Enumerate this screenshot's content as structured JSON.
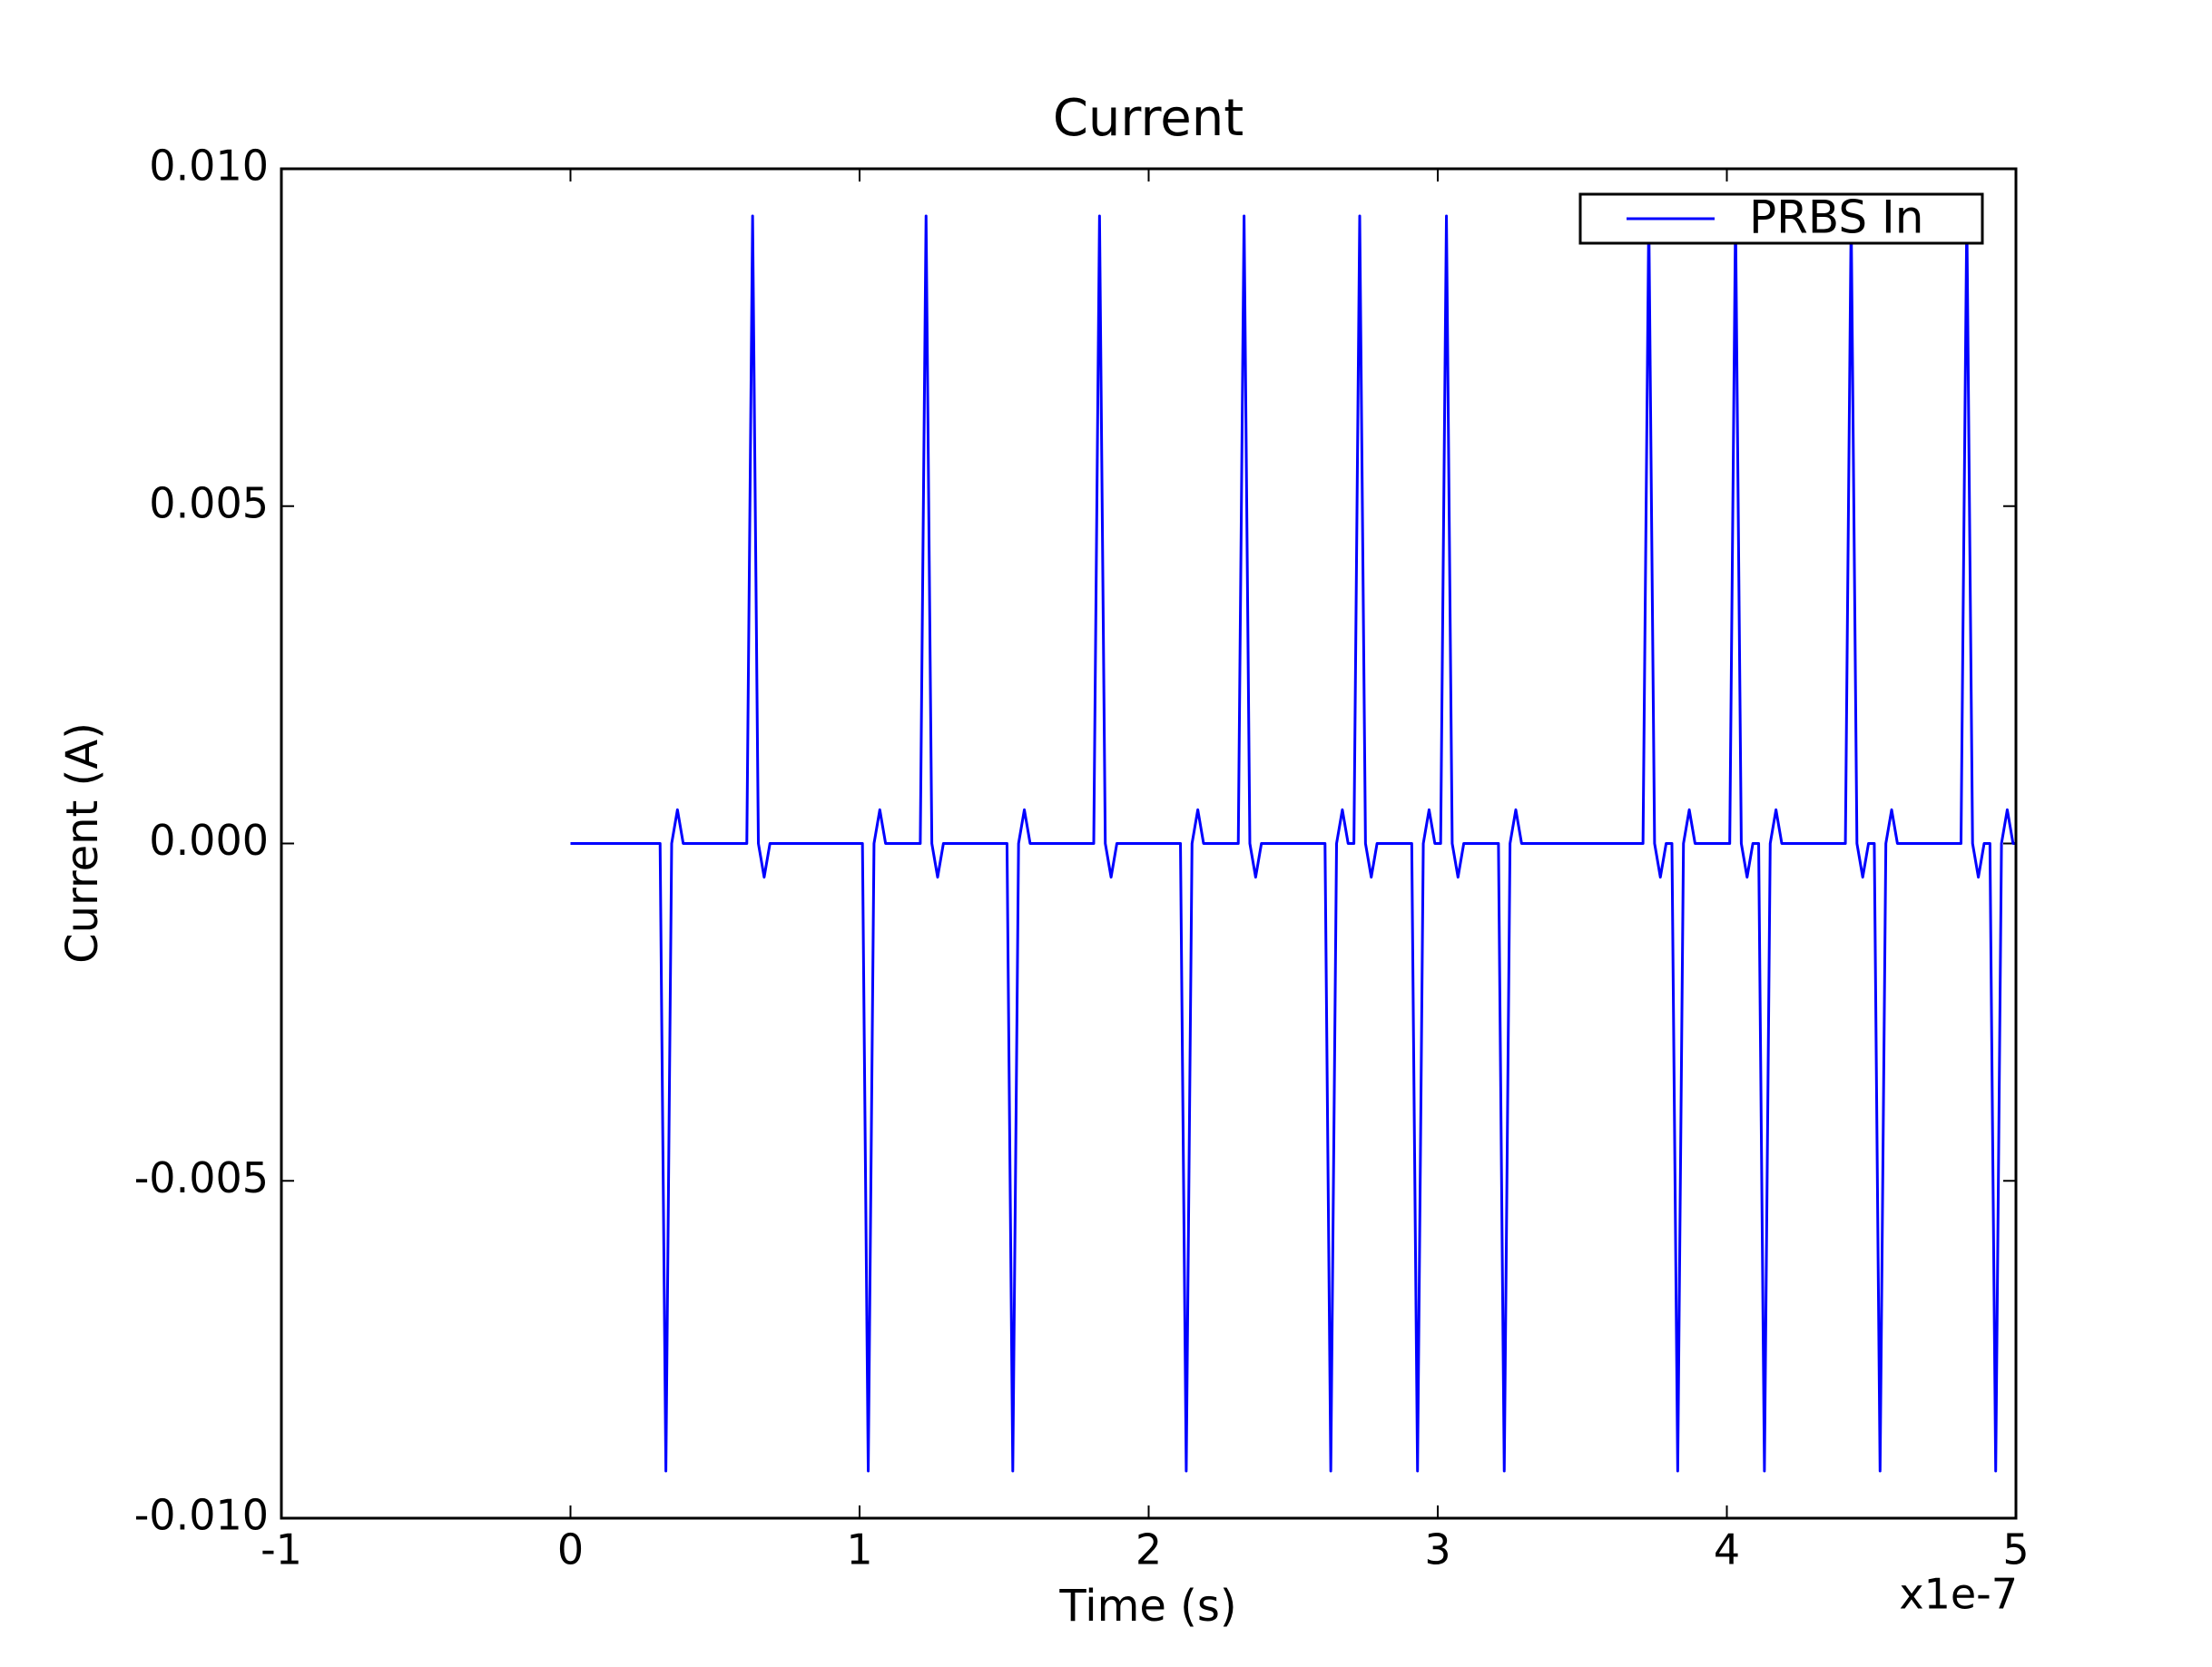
{
  "chart_data": {
    "type": "line",
    "title": "Current",
    "xlabel": "Time (s)",
    "ylabel": "Current (A)",
    "x_offset_label": "x1e-7",
    "x": [
      0,
      0.31,
      0.33,
      0.35,
      0.37,
      0.39,
      0.61,
      0.63,
      0.65,
      0.67,
      0.69,
      1.01,
      1.03,
      1.05,
      1.07,
      1.09,
      1.21,
      1.23,
      1.25,
      1.27,
      1.29,
      1.51,
      1.53,
      1.55,
      1.57,
      1.59,
      1.81,
      1.83,
      1.85,
      1.87,
      1.89,
      2.11,
      2.13,
      2.15,
      2.17,
      2.19,
      2.31,
      2.33,
      2.35,
      2.37,
      2.39,
      2.61,
      2.63,
      2.65,
      2.67,
      2.69,
      2.71,
      2.73,
      2.75,
      2.77,
      2.79,
      2.91,
      2.93,
      2.95,
      2.97,
      2.99,
      3.01,
      3.03,
      3.05,
      3.07,
      3.09,
      3.21,
      3.23,
      3.25,
      3.27,
      3.29,
      3.71,
      3.73,
      3.75,
      3.77,
      3.79,
      3.81,
      3.83,
      3.85,
      3.87,
      3.89,
      4.01,
      4.03,
      4.05,
      4.07,
      4.09,
      4.11,
      4.13,
      4.15,
      4.17,
      4.19,
      4.41,
      4.43,
      4.45,
      4.47,
      4.49,
      4.51,
      4.53,
      4.55,
      4.57,
      4.59,
      4.81,
      4.83,
      4.85,
      4.87,
      4.89,
      4.91,
      4.93,
      4.95,
      4.97,
      4.99,
      5
    ],
    "series": [
      {
        "name": "PRBS In",
        "color": "#0000ff",
        "values": [
          0,
          0,
          -0.0093,
          0,
          0.0005,
          0,
          0,
          0.0093,
          0,
          -0.0005,
          0,
          0,
          -0.0093,
          0,
          0.0005,
          0,
          0,
          0.0093,
          0,
          -0.0005,
          0,
          0,
          -0.0093,
          0,
          0.0005,
          0,
          0,
          0.0093,
          0,
          -0.0005,
          0,
          0,
          -0.0093,
          0,
          0.0005,
          0,
          0,
          0.0093,
          0,
          -0.0005,
          0,
          0,
          -0.0093,
          0,
          0.0005,
          0,
          0,
          0.0093,
          0,
          -0.0005,
          0,
          0,
          -0.0093,
          0,
          0.0005,
          0,
          0,
          0.0093,
          0,
          -0.0005,
          0,
          0,
          -0.0093,
          0,
          0.0005,
          0,
          0,
          0.0093,
          0,
          -0.0005,
          0,
          0,
          -0.0093,
          0,
          0.0005,
          0,
          0,
          0.0093,
          0,
          -0.0005,
          0,
          0,
          -0.0093,
          0,
          0.0005,
          0,
          0,
          0.0093,
          0,
          -0.0005,
          0,
          0,
          -0.0093,
          0,
          0.0005,
          0,
          0,
          0.0093,
          0,
          -0.0005,
          0,
          0,
          -0.0093,
          0,
          0.0005,
          0,
          0
        ]
      }
    ],
    "xlim": [
      -1,
      5
    ],
    "xticks": [
      -1,
      0,
      1,
      2,
      3,
      4,
      5
    ],
    "ylim": [
      -0.01,
      0.01
    ],
    "yticks": [
      {
        "value": -0.01,
        "label": "-0.010"
      },
      -0.005,
      {
        "value": 0,
        "label": "0.000"
      },
      0.005,
      {
        "value": 0.01,
        "label": "0.010"
      }
    ],
    "legend": "upper right",
    "grid": false
  }
}
